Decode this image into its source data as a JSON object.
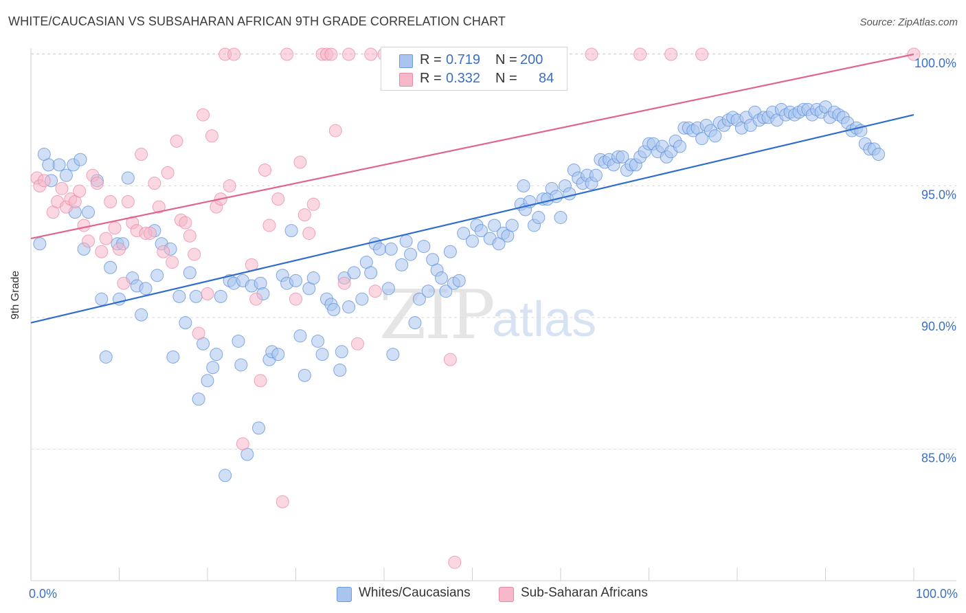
{
  "title": "WHITE/CAUCASIAN VS SUBSAHARAN AFRICAN 9TH GRADE CORRELATION CHART",
  "source": "Source: ZipAtlas.com",
  "watermark": {
    "zip": "ZIP",
    "atlas": "atlas"
  },
  "legend": {
    "r_label": "R =",
    "n_label": "N =",
    "rows": [
      {
        "r": "0.719",
        "n": "200",
        "color": "#a9c4ee",
        "stroke": "#6d9be0"
      },
      {
        "r": "0.332",
        "n": "84",
        "color": "#f6b7c9",
        "stroke": "#e88aa7"
      }
    ]
  },
  "chart_data": {
    "type": "scatter",
    "title": "WHITE/CAUCASIAN VS SUBSAHARAN AFRICAN 9TH GRADE CORRELATION CHART",
    "xlabel": "",
    "ylabel": "9th Grade",
    "xlim": [
      0,
      100
    ],
    "ylim": [
      80.5,
      100.5
    ],
    "x_tick_labels": [
      "0.0%",
      "100.0%"
    ],
    "y_ticks": [
      85,
      90,
      95,
      100
    ],
    "y_tick_labels": [
      "85.0%",
      "90.0%",
      "95.0%",
      "100.0%"
    ],
    "grid": "horizontal dashed",
    "series": [
      {
        "name": "Whites/Caucasians",
        "color": "#a9c4ee",
        "stroke": "#5b8fdb",
        "trend": {
          "x": [
            0,
            100
          ],
          "y": [
            89.8,
            97.7
          ],
          "color": "#2f6ccf"
        },
        "points": [
          [
            1,
            92.8
          ],
          [
            1.5,
            96.2
          ],
          [
            2,
            95.8
          ],
          [
            2.3,
            95.2
          ],
          [
            3.2,
            95.8
          ],
          [
            4,
            95.4
          ],
          [
            4.8,
            95.8
          ],
          [
            5,
            94
          ],
          [
            5.6,
            96
          ],
          [
            6,
            92.6
          ],
          [
            6.5,
            94
          ],
          [
            7.5,
            95.2
          ],
          [
            8,
            90.7
          ],
          [
            8.5,
            88.5
          ],
          [
            9,
            91.9
          ],
          [
            9.8,
            92.8
          ],
          [
            10,
            90.7
          ],
          [
            10.4,
            92.8
          ],
          [
            11,
            95.3
          ],
          [
            11.5,
            91.5
          ],
          [
            12,
            91.2
          ],
          [
            12.5,
            90.1
          ],
          [
            13,
            91.1
          ],
          [
            14,
            93.3
          ],
          [
            14.3,
            91.6
          ],
          [
            14.8,
            92.8
          ],
          [
            15.8,
            92.6
          ],
          [
            16.1,
            88.5
          ],
          [
            16.8,
            90.8
          ],
          [
            17.5,
            89.8
          ],
          [
            18,
            91.7
          ],
          [
            18.7,
            90.8
          ],
          [
            19,
            86.9
          ],
          [
            19.5,
            89
          ],
          [
            20,
            87.6
          ],
          [
            20.6,
            88.1
          ],
          [
            21,
            88.6
          ],
          [
            21.5,
            90.8
          ],
          [
            22,
            84
          ],
          [
            22.5,
            91.4
          ],
          [
            23,
            91.3
          ],
          [
            23.5,
            89.1
          ],
          [
            23.8,
            88.2
          ],
          [
            24,
            91.4
          ],
          [
            24.5,
            84.8
          ],
          [
            25,
            91.2
          ],
          [
            25.8,
            85.8
          ],
          [
            26,
            91.3
          ],
          [
            26.3,
            90.9
          ],
          [
            27,
            88.4
          ],
          [
            27.3,
            88.7
          ],
          [
            28,
            88.6
          ],
          [
            28.5,
            91.6
          ],
          [
            29,
            91.3
          ],
          [
            29.5,
            93.3
          ],
          [
            30,
            91.4
          ],
          [
            30.5,
            89.3
          ],
          [
            31,
            87.8
          ],
          [
            31.5,
            91.1
          ],
          [
            32,
            91.5
          ],
          [
            32.5,
            89.1
          ],
          [
            33,
            88.6
          ],
          [
            33.5,
            90.7
          ],
          [
            34,
            90.5
          ],
          [
            34.3,
            90.3
          ],
          [
            35,
            88
          ],
          [
            35.2,
            88.7
          ],
          [
            35.5,
            91.5
          ],
          [
            36,
            90.4
          ],
          [
            36.6,
            91.7
          ],
          [
            37.5,
            90.7
          ],
          [
            38,
            92.1
          ],
          [
            38.5,
            91.7
          ],
          [
            39,
            92.8
          ],
          [
            39.5,
            92.6
          ],
          [
            40.5,
            91.1
          ],
          [
            40.8,
            92.6
          ],
          [
            41,
            88.6
          ],
          [
            42,
            92
          ],
          [
            42.5,
            92.9
          ],
          [
            43,
            92.4
          ],
          [
            43.5,
            89.8
          ],
          [
            44,
            90.7
          ],
          [
            44.5,
            92.7
          ],
          [
            45,
            91
          ],
          [
            45.5,
            92.2
          ],
          [
            46,
            91.8
          ],
          [
            46.5,
            91.5
          ],
          [
            47,
            91
          ],
          [
            47.5,
            92.5
          ],
          [
            47.9,
            91.3
          ],
          [
            48.5,
            91.4
          ],
          [
            49,
            93.2
          ],
          [
            50,
            92.9
          ],
          [
            50.5,
            93.5
          ],
          [
            51,
            93.3
          ],
          [
            52,
            93
          ],
          [
            52.5,
            93.5
          ],
          [
            53,
            92.8
          ],
          [
            53.5,
            93.2
          ],
          [
            54,
            93.1
          ],
          [
            54.5,
            93.5
          ],
          [
            55.5,
            94.3
          ],
          [
            55.8,
            95
          ],
          [
            56,
            94.1
          ],
          [
            56.5,
            94.4
          ],
          [
            57,
            93.5
          ],
          [
            57.5,
            93.8
          ],
          [
            58,
            94.5
          ],
          [
            58.5,
            94.5
          ],
          [
            59,
            94.9
          ],
          [
            59.5,
            94.6
          ],
          [
            60,
            93.8
          ],
          [
            60.5,
            95
          ],
          [
            61,
            94.7
          ],
          [
            61.5,
            95.6
          ],
          [
            62,
            95.3
          ],
          [
            62.5,
            95.1
          ],
          [
            63,
            95.4
          ],
          [
            63.5,
            95.1
          ],
          [
            64,
            95.4
          ],
          [
            64.5,
            96
          ],
          [
            65,
            95.9
          ],
          [
            65.5,
            96
          ],
          [
            66,
            95.8
          ],
          [
            66.5,
            96.1
          ],
          [
            67,
            96.1
          ],
          [
            67.5,
            95.6
          ],
          [
            68,
            95.8
          ],
          [
            68.5,
            95.8
          ],
          [
            69,
            96.1
          ],
          [
            69.5,
            96.3
          ],
          [
            70,
            96.6
          ],
          [
            70.5,
            96.6
          ],
          [
            71,
            96.3
          ],
          [
            71.5,
            96.5
          ],
          [
            72,
            96.1
          ],
          [
            72.5,
            96.3
          ],
          [
            73,
            96.7
          ],
          [
            73.5,
            96.5
          ],
          [
            74,
            97.2
          ],
          [
            74.5,
            97.2
          ],
          [
            75,
            97.1
          ],
          [
            75.5,
            97.2
          ],
          [
            76,
            96.8
          ],
          [
            76.5,
            97.3
          ],
          [
            77,
            97.1
          ],
          [
            77.5,
            96.9
          ],
          [
            78,
            97.4
          ],
          [
            78.5,
            97.3
          ],
          [
            79,
            97.5
          ],
          [
            79.5,
            97.6
          ],
          [
            80,
            97.5
          ],
          [
            80.5,
            97.2
          ],
          [
            81,
            97.6
          ],
          [
            81.5,
            97.3
          ],
          [
            82,
            97.8
          ],
          [
            82.5,
            97.5
          ],
          [
            83,
            97.6
          ],
          [
            83.5,
            97.6
          ],
          [
            84,
            97.8
          ],
          [
            84.5,
            97.5
          ],
          [
            85,
            97.9
          ],
          [
            85.5,
            97.7
          ],
          [
            86,
            97.8
          ],
          [
            86.5,
            97.7
          ],
          [
            87,
            97.8
          ],
          [
            87.5,
            97.9
          ],
          [
            88,
            97.9
          ],
          [
            88.5,
            97.7
          ],
          [
            89,
            97.9
          ],
          [
            89.5,
            97.8
          ],
          [
            90,
            98
          ],
          [
            90.5,
            97.6
          ],
          [
            91,
            97.8
          ],
          [
            91.5,
            97.7
          ],
          [
            92,
            97.6
          ],
          [
            92.5,
            97.4
          ],
          [
            93,
            97.1
          ],
          [
            93.5,
            97.2
          ],
          [
            94,
            97.1
          ],
          [
            94.5,
            96.6
          ],
          [
            95,
            96.4
          ],
          [
            95.5,
            96.4
          ],
          [
            96,
            96.2
          ]
        ]
      },
      {
        "name": "Sub-Saharan Africans",
        "color": "#f6b7c9",
        "stroke": "#e88aa7",
        "trend": {
          "x": [
            0,
            100
          ],
          "y": [
            93.0,
            100.0
          ],
          "color": "#e0648c"
        },
        "points": [
          [
            0.7,
            95.3
          ],
          [
            1,
            95
          ],
          [
            1.5,
            95.2
          ],
          [
            2.5,
            94
          ],
          [
            3,
            94.4
          ],
          [
            3.5,
            94.9
          ],
          [
            4,
            94.2
          ],
          [
            4.5,
            94.5
          ],
          [
            5,
            94.4
          ],
          [
            5.5,
            94.8
          ],
          [
            6,
            93.5
          ],
          [
            6.5,
            92.9
          ],
          [
            7,
            95.4
          ],
          [
            7.5,
            95.1
          ],
          [
            8,
            92.5
          ],
          [
            8.5,
            93
          ],
          [
            9,
            94.4
          ],
          [
            9.5,
            93.4
          ],
          [
            10,
            92.6
          ],
          [
            10.5,
            91.3
          ],
          [
            11,
            94.4
          ],
          [
            11.5,
            93.6
          ],
          [
            12,
            93.3
          ],
          [
            12.5,
            96.2
          ],
          [
            13,
            93.2
          ],
          [
            13.5,
            93.2
          ],
          [
            14,
            95.1
          ],
          [
            14.5,
            94.2
          ],
          [
            15,
            92.5
          ],
          [
            15.5,
            95.5
          ],
          [
            16,
            92.1
          ],
          [
            16.5,
            96.7
          ],
          [
            17,
            93.7
          ],
          [
            17.5,
            93.6
          ],
          [
            18,
            93.1
          ],
          [
            18.5,
            92.4
          ],
          [
            19,
            89.4
          ],
          [
            19.5,
            97.7
          ],
          [
            20,
            90.9
          ],
          [
            20.5,
            96.9
          ],
          [
            21,
            94.2
          ],
          [
            21.5,
            94.5
          ],
          [
            22,
            100
          ],
          [
            22.5,
            95
          ],
          [
            23,
            100
          ],
          [
            24,
            85.2
          ],
          [
            25,
            92
          ],
          [
            25.5,
            90.7
          ],
          [
            26,
            87.6
          ],
          [
            26.5,
            95.6
          ],
          [
            27,
            93.5
          ],
          [
            28,
            94.5
          ],
          [
            28.5,
            83
          ],
          [
            29,
            100
          ],
          [
            30,
            90.7
          ],
          [
            30.5,
            95.9
          ],
          [
            31,
            93.9
          ],
          [
            31.5,
            93.2
          ],
          [
            32,
            94.3
          ],
          [
            33,
            100
          ],
          [
            33.5,
            100
          ],
          [
            34,
            100
          ],
          [
            34.5,
            97.1
          ],
          [
            35.5,
            91.3
          ],
          [
            36,
            100
          ],
          [
            37,
            89
          ],
          [
            38.5,
            100
          ],
          [
            39,
            91
          ],
          [
            40,
            100
          ],
          [
            43,
            100
          ],
          [
            44,
            100
          ],
          [
            47,
            100
          ],
          [
            47.5,
            88.4
          ],
          [
            48,
            80.7
          ],
          [
            52,
            100
          ],
          [
            53,
            100
          ],
          [
            60,
            100
          ],
          [
            63.5,
            100
          ],
          [
            69,
            100
          ],
          [
            72.5,
            100
          ],
          [
            76,
            100
          ],
          [
            100,
            100
          ],
          [
            41,
            99
          ]
        ]
      }
    ]
  }
}
